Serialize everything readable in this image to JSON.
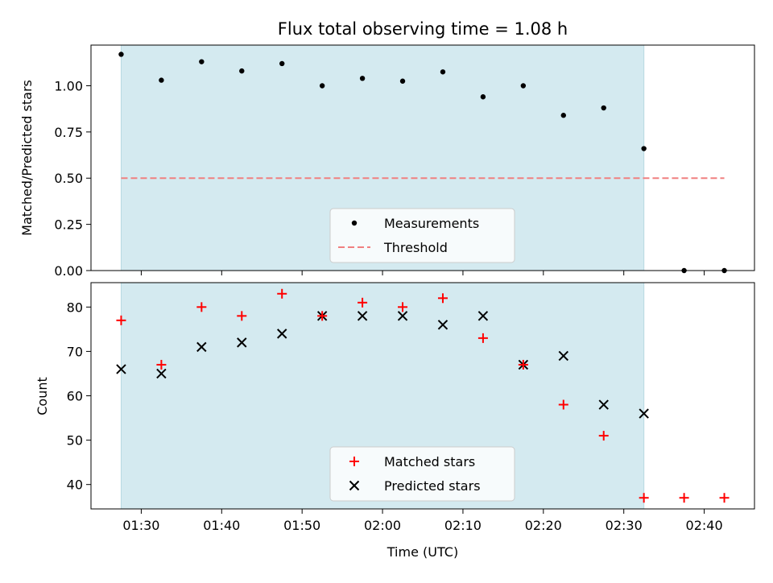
{
  "title": "Flux total observing time = 1.08 h",
  "colors": {
    "shade": "#d4eaf0",
    "measurement": "#000000",
    "threshold": "#f08080",
    "matched": "#ff0000",
    "predicted": "#000000"
  },
  "chart_data": [
    {
      "type": "scatter",
      "panel": "top",
      "title": "Flux total observing time = 1.08 h",
      "xlabel": "",
      "ylabel": "Matched/Predicted stars",
      "ylim": [
        0.0,
        1.22
      ],
      "yticks": [
        0.0,
        0.25,
        0.5,
        0.75,
        1.0
      ],
      "ytick_labels": [
        "0.00",
        "0.25",
        "0.50",
        "0.75",
        "1.00"
      ],
      "shaded_span": [
        "01:27:30",
        "02:32:30"
      ],
      "legend": "lower-center",
      "series": [
        {
          "name": "Measurements",
          "marker": "dot",
          "x": [
            "01:27:30",
            "01:32:30",
            "01:37:30",
            "01:42:30",
            "01:47:30",
            "01:52:30",
            "01:57:30",
            "02:02:30",
            "02:07:30",
            "02:12:30",
            "02:17:30",
            "02:22:30",
            "02:27:30",
            "02:32:30",
            "02:37:30",
            "02:42:30"
          ],
          "y": [
            1.17,
            1.03,
            1.13,
            1.08,
            1.12,
            1.0,
            1.04,
            1.025,
            1.075,
            0.94,
            1.0,
            0.84,
            0.88,
            0.66,
            0.0,
            0.0
          ]
        },
        {
          "name": "Threshold",
          "marker": "dashed-line",
          "x": [
            "01:27:30",
            "02:42:30"
          ],
          "y": [
            0.5,
            0.5
          ]
        }
      ]
    },
    {
      "type": "scatter",
      "panel": "bottom",
      "xlabel": "Time (UTC)",
      "ylabel": "Count",
      "ylim": [
        34.5,
        85.5
      ],
      "yticks": [
        40,
        50,
        60,
        70,
        80
      ],
      "ytick_labels": [
        "40",
        "50",
        "60",
        "70",
        "80"
      ],
      "xlim": [
        "01:23:45",
        "02:46:15"
      ],
      "xticks": [
        "01:30:00",
        "01:40:00",
        "01:50:00",
        "02:00:00",
        "02:10:00",
        "02:20:00",
        "02:30:00",
        "02:40:00"
      ],
      "xtick_labels": [
        "01:30",
        "01:40",
        "01:50",
        "02:00",
        "02:10",
        "02:20",
        "02:30",
        "02:40"
      ],
      "shaded_span": [
        "01:27:30",
        "02:32:30"
      ],
      "legend": "lower-center",
      "series": [
        {
          "name": "Matched stars",
          "marker": "plus",
          "x": [
            "01:27:30",
            "01:32:30",
            "01:37:30",
            "01:42:30",
            "01:47:30",
            "01:52:30",
            "01:57:30",
            "02:02:30",
            "02:07:30",
            "02:12:30",
            "02:17:30",
            "02:22:30",
            "02:27:30",
            "02:32:30",
            "02:37:30",
            "02:42:30"
          ],
          "y": [
            77,
            67,
            80,
            78,
            83,
            78,
            81,
            80,
            82,
            73,
            67,
            58,
            51,
            37,
            37,
            37
          ]
        },
        {
          "name": "Predicted stars",
          "marker": "x",
          "x": [
            "01:27:30",
            "01:32:30",
            "01:37:30",
            "01:42:30",
            "01:47:30",
            "01:52:30",
            "01:57:30",
            "02:02:30",
            "02:07:30",
            "02:12:30",
            "02:17:30",
            "02:22:30",
            "02:27:30",
            "02:32:30"
          ],
          "y": [
            66,
            65,
            71,
            72,
            74,
            78,
            78,
            78,
            76,
            78,
            67,
            69,
            58,
            56
          ]
        }
      ]
    }
  ]
}
